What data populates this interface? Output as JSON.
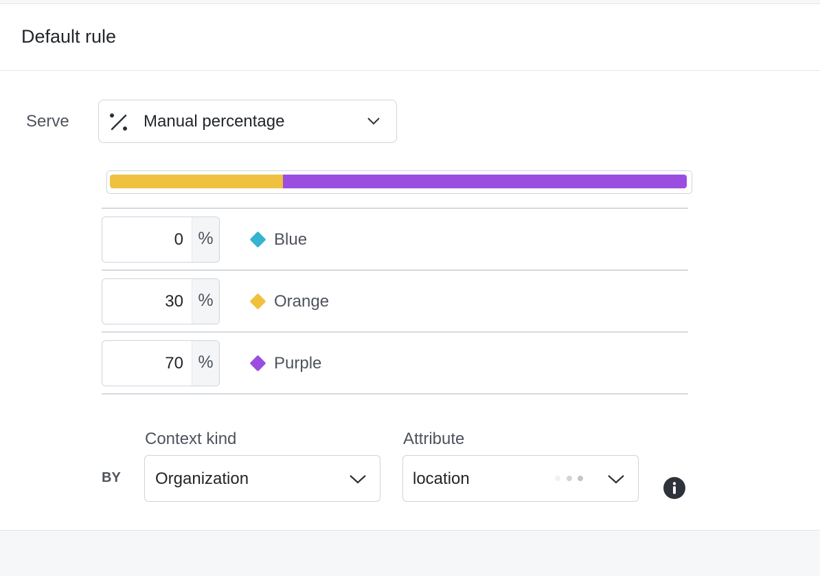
{
  "header": {
    "title": "Default rule"
  },
  "serve": {
    "label": "Serve",
    "selected": "Manual percentage"
  },
  "rollout": {
    "unit": "%",
    "variations": [
      {
        "name": "Blue",
        "percent": 0,
        "color": "#36b3cf"
      },
      {
        "name": "Orange",
        "percent": 30,
        "color": "#f0c140"
      },
      {
        "name": "Purple",
        "percent": 70,
        "color": "#9b4de0"
      }
    ]
  },
  "bucketing": {
    "label": "BY",
    "context_kind": {
      "label": "Context kind",
      "selected": "Organization"
    },
    "attribute": {
      "label": "Attribute",
      "selected": "location"
    }
  }
}
